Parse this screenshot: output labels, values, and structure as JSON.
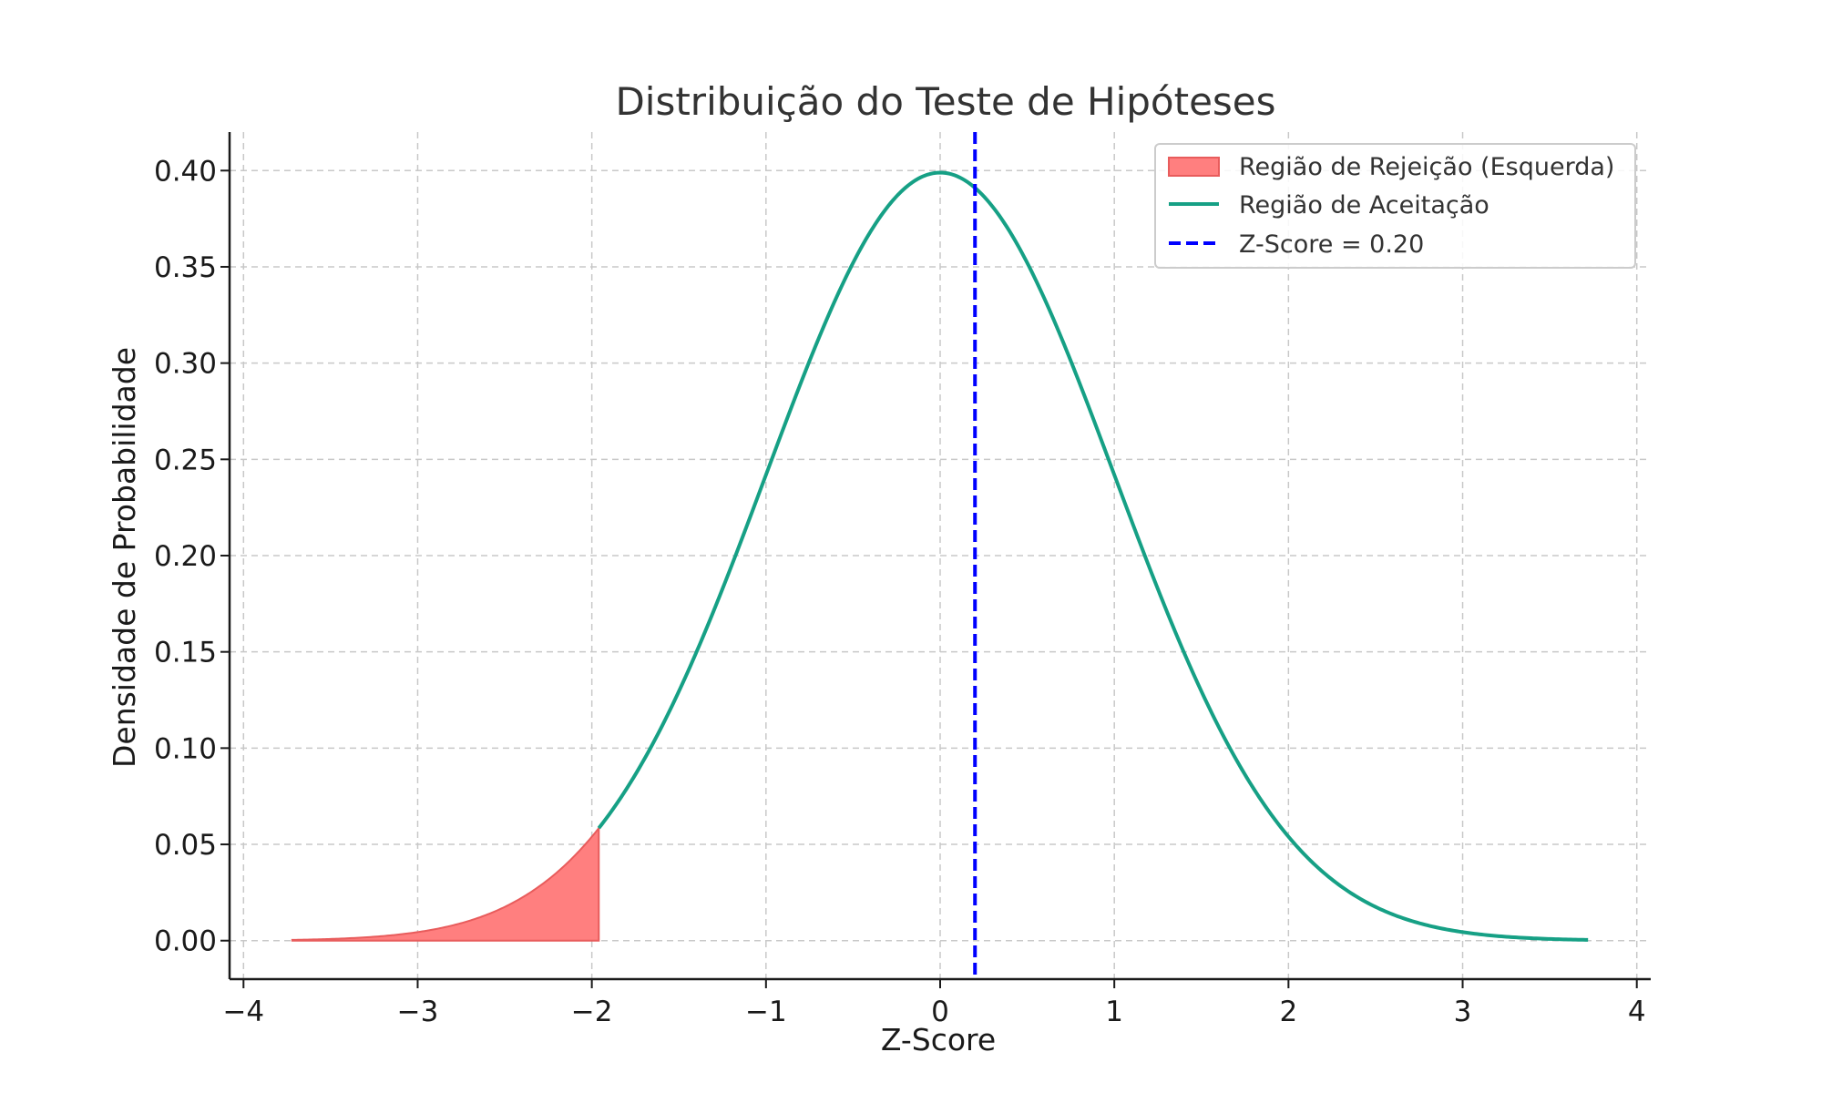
{
  "chart_data": {
    "type": "line",
    "title": "Distribuição do Teste de Hipóteses",
    "xlabel": "Z-Score",
    "ylabel": "Densidade de Probabilidade",
    "xlim": [
      -4.08,
      4.08
    ],
    "ylim": [
      -0.02,
      0.42
    ],
    "xticks": [
      -4,
      -3,
      -2,
      -1,
      0,
      1,
      2,
      3,
      4
    ],
    "xtick_labels": [
      "−4",
      "−3",
      "−2",
      "−1",
      "0",
      "1",
      "2",
      "3",
      "4"
    ],
    "yticks": [
      0,
      0.05,
      0.1,
      0.15,
      0.2,
      0.25,
      0.3,
      0.35,
      0.4
    ],
    "ytick_labels": [
      "0.00",
      "0.05",
      "0.10",
      "0.15",
      "0.20",
      "0.25",
      "0.30",
      "0.35",
      "0.40"
    ],
    "grid": true,
    "legend_position": "top-right",
    "series": [
      {
        "name": "Região de Rejeição (Esquerda)",
        "kind": "area",
        "function": "standard-normal-pdf",
        "x_range": [
          -3.72,
          -1.96
        ],
        "color": "#ff7f7f",
        "edge_color": "#e85c5c"
      },
      {
        "name": "Região de Aceitação",
        "kind": "line",
        "function": "standard-normal-pdf",
        "x_range": [
          -1.96,
          3.72
        ],
        "color": "#16a085"
      },
      {
        "name": "Z-Score = 0.20",
        "kind": "vline",
        "x": 0.2,
        "color": "#0000ff",
        "dashed": true
      }
    ]
  }
}
